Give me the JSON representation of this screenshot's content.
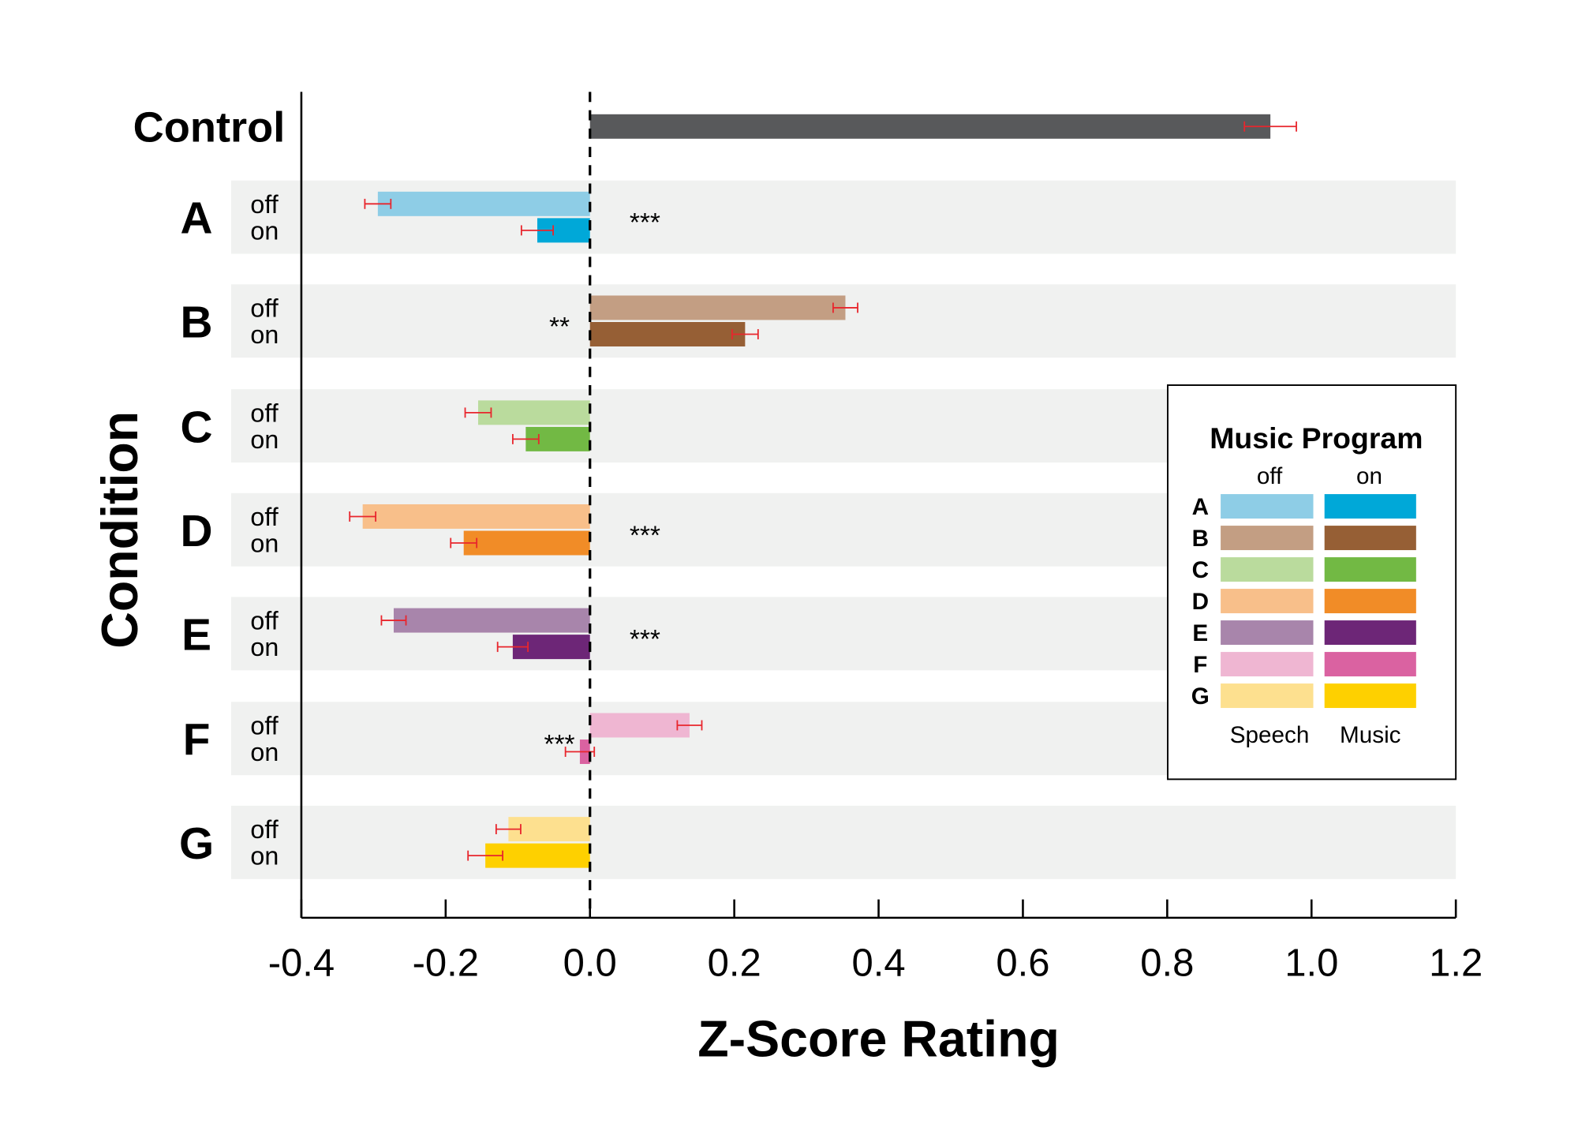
{
  "chart_data": {
    "type": "bar",
    "orientation": "horizontal",
    "xlabel": "Z-Score Rating",
    "ylabel": "Condition",
    "xlim": [
      -0.4,
      1.2
    ],
    "xticks": [
      "-0.4",
      "-0.2",
      "0.0",
      "0.2",
      "0.4",
      "0.6",
      "0.8",
      "1.0",
      "1.2"
    ],
    "control": {
      "label": "Control",
      "value": 0.943,
      "error": 0.036,
      "color": "#58595b"
    },
    "sublabels": {
      "off": "off",
      "on": "on"
    },
    "conditions": [
      {
        "label": "A",
        "off": -0.294,
        "off_err": 0.018,
        "on": -0.073,
        "on_err": 0.022,
        "sig": "***",
        "off_color": "#8ecde6",
        "on_color": "#00a8d8"
      },
      {
        "label": "B",
        "off": 0.354,
        "off_err": 0.017,
        "on": 0.215,
        "on_err": 0.018,
        "sig": "**",
        "off_color": "#c39e83",
        "on_color": "#965f35"
      },
      {
        "label": "C",
        "off": -0.155,
        "off_err": 0.018,
        "on": -0.089,
        "on_err": 0.018,
        "sig": "",
        "off_color": "#badb9d",
        "on_color": "#72b944"
      },
      {
        "label": "D",
        "off": -0.315,
        "off_err": 0.018,
        "on": -0.175,
        "on_err": 0.018,
        "sig": "***",
        "off_color": "#f8bf8a",
        "on_color": "#f18c27"
      },
      {
        "label": "E",
        "off": -0.272,
        "off_err": 0.017,
        "on": -0.107,
        "on_err": 0.021,
        "sig": "***",
        "off_color": "#a885ab",
        "on_color": "#6d2677"
      },
      {
        "label": "F",
        "off": 0.138,
        "off_err": 0.017,
        "on": -0.014,
        "on_err": 0.02,
        "sig": "***",
        "off_color": "#efb6d2",
        "on_color": "#da62a1"
      },
      {
        "label": "G",
        "off": -0.113,
        "off_err": 0.017,
        "on": -0.145,
        "on_err": 0.024,
        "sig": "",
        "off_color": "#fde08f",
        "on_color": "#fed000"
      }
    ],
    "legend": {
      "title": "Music Program",
      "col_off": "off",
      "col_on": "on",
      "speech_label": "Speech",
      "music_label": "Music",
      "placement": "right"
    },
    "grid": false,
    "band_color": "#f0f1f0",
    "error_color": "#e8262d"
  }
}
